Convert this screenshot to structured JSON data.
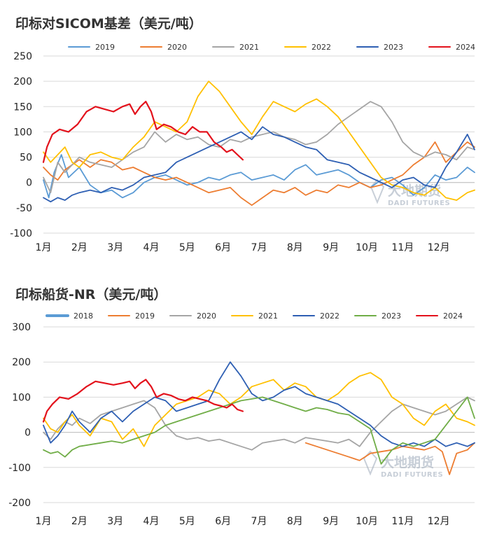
{
  "chart_data": [
    {
      "type": "line",
      "title": "印标对SICOM基差（美元/吨）",
      "xlabel": "",
      "ylabel": "",
      "ylim": [
        -100,
        250
      ],
      "yticks": [
        -100,
        -50,
        0,
        50,
        100,
        150,
        200,
        250
      ],
      "xlim": [
        0,
        12
      ],
      "categories": [
        "1月",
        "2月",
        "3月",
        "4月",
        "5月",
        "6月",
        "7月",
        "8月",
        "9月",
        "10月",
        "11月",
        "12月"
      ],
      "legend_position": "top",
      "series": [
        {
          "name": "2019",
          "color": "#5b9bd5",
          "x": [
            0,
            0.15,
            0.3,
            0.5,
            0.7,
            1.0,
            1.3,
            1.6,
            1.9,
            2.2,
            2.5,
            2.8,
            3.1,
            3.4,
            3.7,
            4.0,
            4.3,
            4.6,
            4.9,
            5.2,
            5.5,
            5.8,
            6.1,
            6.4,
            6.7,
            7.0,
            7.3,
            7.6,
            7.9,
            8.2,
            8.5,
            8.8,
            9.1,
            9.4,
            9.7,
            10.0,
            10.3,
            10.6,
            10.9,
            11.2,
            11.5,
            11.8,
            12.0
          ],
          "values": [
            5,
            -30,
            20,
            55,
            10,
            30,
            -5,
            -20,
            -15,
            -30,
            -20,
            0,
            10,
            15,
            5,
            -5,
            0,
            10,
            5,
            15,
            20,
            5,
            10,
            15,
            5,
            25,
            35,
            15,
            20,
            25,
            15,
            0,
            -10,
            5,
            10,
            -5,
            -25,
            -10,
            15,
            5,
            10,
            30,
            20
          ]
        },
        {
          "name": "2020",
          "color": "#ed7d31",
          "x": [
            0,
            0.2,
            0.4,
            0.6,
            0.8,
            1.0,
            1.3,
            1.6,
            1.9,
            2.2,
            2.5,
            2.8,
            3.1,
            3.4,
            3.7,
            4.0,
            4.3,
            4.6,
            4.9,
            5.2,
            5.5,
            5.8,
            6.1,
            6.4,
            6.7,
            7.0,
            7.3,
            7.6,
            7.9,
            8.2,
            8.5,
            8.8,
            9.1,
            9.4,
            9.7,
            10.0,
            10.3,
            10.6,
            10.9,
            11.2,
            11.5,
            11.8,
            12.0
          ],
          "values": [
            30,
            15,
            5,
            25,
            35,
            45,
            30,
            45,
            40,
            25,
            30,
            20,
            10,
            5,
            10,
            0,
            -10,
            -20,
            -15,
            -10,
            -30,
            -45,
            -30,
            -15,
            -20,
            -10,
            -25,
            -15,
            -20,
            -5,
            -10,
            0,
            -10,
            -5,
            5,
            15,
            35,
            50,
            80,
            40,
            60,
            80,
            70
          ]
        },
        {
          "name": "2021",
          "color": "#a5a5a5",
          "x": [
            0,
            0.2,
            0.4,
            0.6,
            0.8,
            1.0,
            1.3,
            1.6,
            1.9,
            2.2,
            2.5,
            2.8,
            3.1,
            3.4,
            3.7,
            4.0,
            4.3,
            4.6,
            4.9,
            5.2,
            5.5,
            5.8,
            6.1,
            6.4,
            6.7,
            7.0,
            7.3,
            7.6,
            7.9,
            8.2,
            8.5,
            8.8,
            9.1,
            9.4,
            9.7,
            10.0,
            10.3,
            10.6,
            10.9,
            11.2,
            11.5,
            11.8,
            12.0
          ],
          "values": [
            10,
            -20,
            40,
            20,
            35,
            50,
            40,
            35,
            30,
            45,
            60,
            70,
            100,
            80,
            95,
            85,
            90,
            75,
            70,
            85,
            80,
            90,
            95,
            100,
            90,
            85,
            75,
            80,
            95,
            115,
            130,
            145,
            160,
            150,
            120,
            80,
            60,
            50,
            60,
            55,
            45,
            70,
            65
          ]
        },
        {
          "name": "2022",
          "color": "#ffc000",
          "x": [
            0,
            0.2,
            0.4,
            0.6,
            0.8,
            1.0,
            1.3,
            1.6,
            1.9,
            2.2,
            2.5,
            2.8,
            3.1,
            3.4,
            3.7,
            4.0,
            4.3,
            4.6,
            4.9,
            5.2,
            5.5,
            5.8,
            6.1,
            6.4,
            6.7,
            7.0,
            7.3,
            7.6,
            7.9,
            8.2,
            8.5,
            8.8,
            9.1,
            9.4,
            9.7,
            10.0,
            10.3,
            10.6,
            10.9,
            11.2,
            11.5,
            11.8,
            12.0
          ],
          "values": [
            60,
            40,
            55,
            70,
            40,
            30,
            55,
            60,
            50,
            45,
            70,
            90,
            120,
            110,
            100,
            120,
            170,
            200,
            180,
            150,
            120,
            95,
            130,
            160,
            150,
            140,
            155,
            165,
            150,
            130,
            100,
            70,
            40,
            10,
            -5,
            -10,
            -20,
            -25,
            -10,
            -30,
            -35,
            -20,
            -15
          ]
        },
        {
          "name": "2023",
          "color": "#2e5fb3",
          "x": [
            0,
            0.2,
            0.4,
            0.6,
            0.8,
            1.0,
            1.3,
            1.6,
            1.9,
            2.2,
            2.5,
            2.8,
            3.1,
            3.4,
            3.7,
            4.0,
            4.3,
            4.6,
            4.9,
            5.2,
            5.5,
            5.8,
            6.1,
            6.4,
            6.7,
            7.0,
            7.3,
            7.6,
            7.9,
            8.2,
            8.5,
            8.8,
            9.1,
            9.4,
            9.7,
            10.0,
            10.3,
            10.6,
            10.9,
            11.2,
            11.5,
            11.8,
            12.0
          ],
          "values": [
            -30,
            -38,
            -30,
            -35,
            -25,
            -20,
            -15,
            -20,
            -10,
            -15,
            -5,
            10,
            15,
            20,
            40,
            50,
            60,
            70,
            80,
            90,
            100,
            85,
            110,
            95,
            90,
            80,
            70,
            65,
            45,
            40,
            35,
            20,
            10,
            0,
            -10,
            5,
            10,
            -5,
            -10,
            30,
            60,
            95,
            65
          ]
        },
        {
          "name": "2024",
          "color": "#e3121c",
          "x": [
            0,
            0.1,
            0.25,
            0.45,
            0.7,
            0.95,
            1.2,
            1.45,
            1.7,
            1.95,
            2.2,
            2.4,
            2.55,
            2.7,
            2.85,
            3.0,
            3.15,
            3.35,
            3.55,
            3.75,
            3.95,
            4.15,
            4.35,
            4.55,
            4.75,
            4.95,
            5.1,
            5.25,
            5.4,
            5.55
          ],
          "values": [
            40,
            70,
            95,
            105,
            100,
            115,
            140,
            150,
            145,
            140,
            150,
            155,
            135,
            150,
            160,
            140,
            105,
            115,
            110,
            100,
            95,
            110,
            100,
            100,
            80,
            70,
            60,
            65,
            55,
            45
          ]
        }
      ]
    },
    {
      "type": "line",
      "title": "印标船货-NR（美元/吨）",
      "xlabel": "",
      "ylabel": "",
      "ylim": [
        -200,
        300
      ],
      "yticks": [
        -200,
        -100,
        0,
        100,
        200,
        300
      ],
      "xlim": [
        0,
        12
      ],
      "categories": [
        "1月",
        "2月",
        "3月",
        "4月",
        "5月",
        "6月",
        "7月",
        "8月",
        "9月",
        "10月",
        "11月",
        "12月"
      ],
      "legend_position": "top",
      "series": [
        {
          "name": "2018",
          "color": "#5b9bd5",
          "x": [],
          "values": []
        },
        {
          "name": "2019",
          "color": "#ed7d31",
          "x": [
            7.3,
            7.6,
            7.9,
            8.2,
            8.5,
            8.8,
            9.1,
            9.4,
            9.7,
            10.0,
            10.3,
            10.6,
            10.9,
            11.1,
            11.3,
            11.5,
            11.8,
            12.0
          ],
          "values": [
            -30,
            -40,
            -50,
            -60,
            -70,
            -80,
            -60,
            -55,
            -50,
            -40,
            -45,
            -50,
            -40,
            -55,
            -120,
            -60,
            -50,
            -30
          ]
        },
        {
          "name": "2020",
          "color": "#a5a5a5",
          "x": [
            0,
            0.2,
            0.4,
            0.6,
            0.8,
            1.0,
            1.3,
            1.6,
            1.9,
            2.2,
            2.5,
            2.8,
            3.1,
            3.4,
            3.7,
            4.0,
            4.3,
            4.6,
            4.9,
            5.2,
            5.5,
            5.8,
            6.1,
            6.4,
            6.7,
            7.0,
            7.3,
            7.6,
            7.9,
            8.2,
            8.5,
            8.8,
            9.1,
            9.4,
            9.7,
            10.0,
            10.3,
            10.6,
            10.9,
            11.2,
            11.5,
            11.8,
            12.0
          ],
          "values": [
            0,
            -20,
            10,
            30,
            20,
            40,
            25,
            50,
            60,
            70,
            80,
            90,
            70,
            20,
            -10,
            -20,
            -15,
            -25,
            -20,
            -30,
            -40,
            -50,
            -30,
            -25,
            -20,
            -30,
            -15,
            -20,
            -25,
            -30,
            -20,
            -40,
            0,
            30,
            60,
            80,
            70,
            60,
            50,
            60,
            80,
            100,
            90
          ]
        },
        {
          "name": "2021",
          "color": "#ffc000",
          "x": [
            0,
            0.2,
            0.4,
            0.6,
            0.8,
            1.0,
            1.3,
            1.6,
            1.9,
            2.2,
            2.5,
            2.8,
            3.1,
            3.4,
            3.7,
            4.0,
            4.3,
            4.6,
            4.9,
            5.2,
            5.5,
            5.8,
            6.1,
            6.4,
            6.7,
            7.0,
            7.3,
            7.6,
            7.9,
            8.2,
            8.5,
            8.8,
            9.1,
            9.4,
            9.7,
            10.0,
            10.3,
            10.6,
            10.9,
            11.2,
            11.5,
            11.8,
            12.0
          ],
          "values": [
            40,
            10,
            0,
            30,
            50,
            20,
            -10,
            40,
            30,
            -20,
            10,
            -40,
            20,
            50,
            80,
            90,
            100,
            120,
            110,
            80,
            100,
            130,
            140,
            150,
            120,
            140,
            130,
            100,
            90,
            110,
            140,
            160,
            170,
            150,
            100,
            80,
            40,
            20,
            60,
            80,
            40,
            30,
            20
          ]
        },
        {
          "name": "2022",
          "color": "#2e5fb3",
          "x": [
            0,
            0.2,
            0.4,
            0.6,
            0.8,
            1.0,
            1.3,
            1.6,
            1.9,
            2.2,
            2.5,
            2.8,
            3.1,
            3.4,
            3.7,
            4.0,
            4.3,
            4.6,
            4.9,
            5.2,
            5.5,
            5.8,
            6.1,
            6.4,
            6.7,
            7.0,
            7.3,
            7.6,
            7.9,
            8.2,
            8.5,
            8.8,
            9.1,
            9.4,
            9.7,
            10.0,
            10.3,
            10.6,
            10.9,
            11.2,
            11.5,
            11.8,
            12.0
          ],
          "values": [
            20,
            -30,
            -10,
            20,
            60,
            30,
            0,
            40,
            60,
            30,
            60,
            80,
            100,
            90,
            60,
            70,
            80,
            90,
            150,
            200,
            160,
            110,
            90,
            100,
            120,
            130,
            110,
            100,
            90,
            80,
            60,
            40,
            20,
            -10,
            -30,
            -40,
            -30,
            -40,
            -20,
            -40,
            -30,
            -40,
            -30
          ]
        },
        {
          "name": "2023",
          "color": "#70ad47",
          "x": [
            0,
            0.2,
            0.4,
            0.6,
            0.8,
            1.0,
            1.3,
            1.6,
            1.9,
            2.2,
            2.5,
            2.8,
            3.1,
            3.4,
            3.7,
            4.0,
            4.3,
            4.6,
            4.9,
            5.2,
            5.5,
            5.8,
            6.1,
            6.4,
            6.7,
            7.0,
            7.3,
            7.6,
            7.9,
            8.2,
            8.5,
            8.8,
            9.1,
            9.4,
            9.7,
            10.0,
            10.3,
            10.6,
            10.9,
            11.2,
            11.5,
            11.8,
            12.0
          ],
          "values": [
            -50,
            -60,
            -55,
            -70,
            -50,
            -40,
            -35,
            -30,
            -25,
            -30,
            -20,
            -10,
            0,
            20,
            30,
            40,
            50,
            60,
            70,
            80,
            90,
            95,
            100,
            90,
            80,
            70,
            60,
            70,
            65,
            55,
            50,
            30,
            10,
            -90,
            -50,
            -30,
            -40,
            -30,
            -20,
            20,
            60,
            100,
            40
          ]
        },
        {
          "name": "2024",
          "color": "#e3121c",
          "x": [
            0,
            0.1,
            0.25,
            0.45,
            0.7,
            0.95,
            1.2,
            1.45,
            1.7,
            1.95,
            2.2,
            2.4,
            2.55,
            2.7,
            2.85,
            3.0,
            3.15,
            3.35,
            3.55,
            3.75,
            3.95,
            4.15,
            4.35,
            4.55,
            4.75,
            4.95,
            5.1,
            5.25,
            5.4,
            5.55
          ],
          "values": [
            30,
            60,
            80,
            100,
            95,
            110,
            130,
            145,
            140,
            135,
            140,
            145,
            125,
            140,
            150,
            130,
            100,
            110,
            105,
            95,
            90,
            100,
            95,
            90,
            80,
            75,
            70,
            80,
            65,
            60
          ]
        }
      ]
    }
  ],
  "watermark": {
    "cn": "大地期货",
    "en": "DADI FUTURES"
  }
}
